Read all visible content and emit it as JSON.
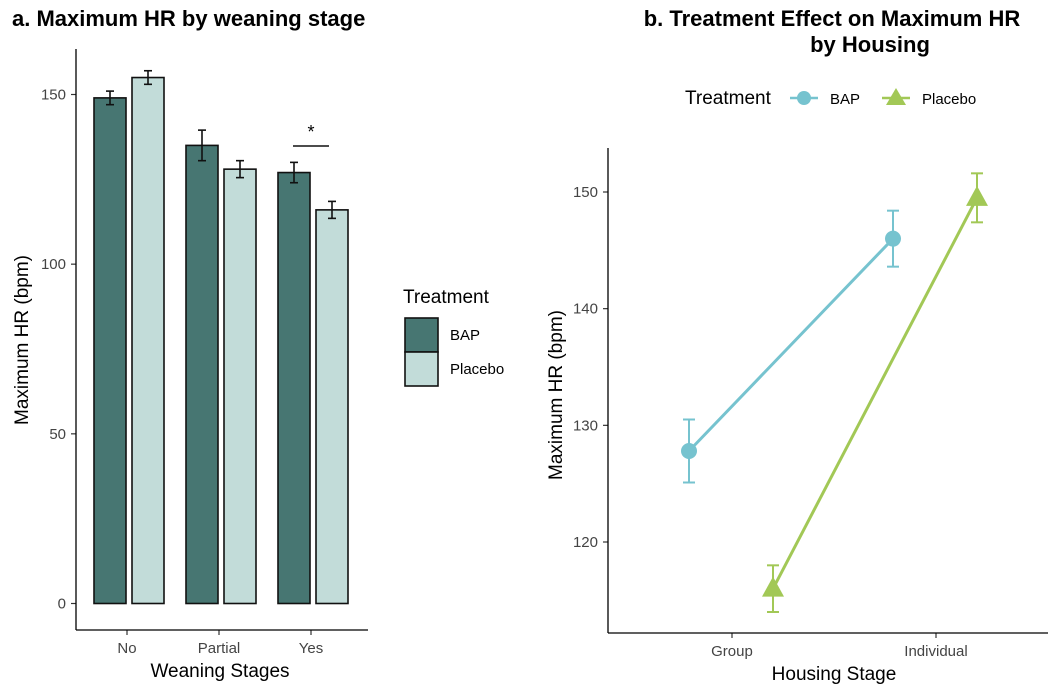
{
  "chart_data": [
    {
      "type": "bar",
      "title": "a. Maximum HR by weaning stage",
      "xlabel": "Weaning Stages",
      "ylabel": "Maximum HR (bpm)",
      "categories": [
        "No",
        "Partial",
        "Yes"
      ],
      "ylim": [
        0,
        160
      ],
      "yticks": [
        0,
        50,
        100,
        150
      ],
      "series": [
        {
          "name": "BAP",
          "values": [
            149,
            135,
            127
          ],
          "errors": [
            2,
            4.5,
            3
          ],
          "color": "#477672"
        },
        {
          "name": "Placebo",
          "values": [
            155,
            128,
            116
          ],
          "errors": [
            2,
            2.5,
            2.5
          ],
          "color": "#c2dcd9"
        }
      ],
      "annotations": [
        {
          "category": "Yes",
          "text": "*"
        }
      ],
      "legend": {
        "title": "Treatment",
        "position": "right"
      },
      "grid": false
    },
    {
      "type": "line",
      "title": "b. Treatment Effect on Maximum HR by Housing",
      "title_lines": [
        "b. Treatment Effect on Maximum HR",
        "by Housing"
      ],
      "xlabel": "Housing Stage",
      "ylabel": "Maximum HR (bpm)",
      "categories": [
        "Group",
        "Individual"
      ],
      "ylim": [
        113,
        153
      ],
      "yticks": [
        120,
        130,
        140,
        150
      ],
      "series": [
        {
          "name": "BAP",
          "marker": "circle",
          "values": [
            127.8,
            146
          ],
          "errors": [
            2.7,
            2.4
          ],
          "color": "#76c3cf"
        },
        {
          "name": "Placebo",
          "marker": "triangle",
          "values": [
            116,
            149.5
          ],
          "errors": [
            2,
            2.1
          ],
          "color": "#a2c856"
        }
      ],
      "legend": {
        "title": "Treatment",
        "position": "top"
      },
      "grid": false
    }
  ]
}
